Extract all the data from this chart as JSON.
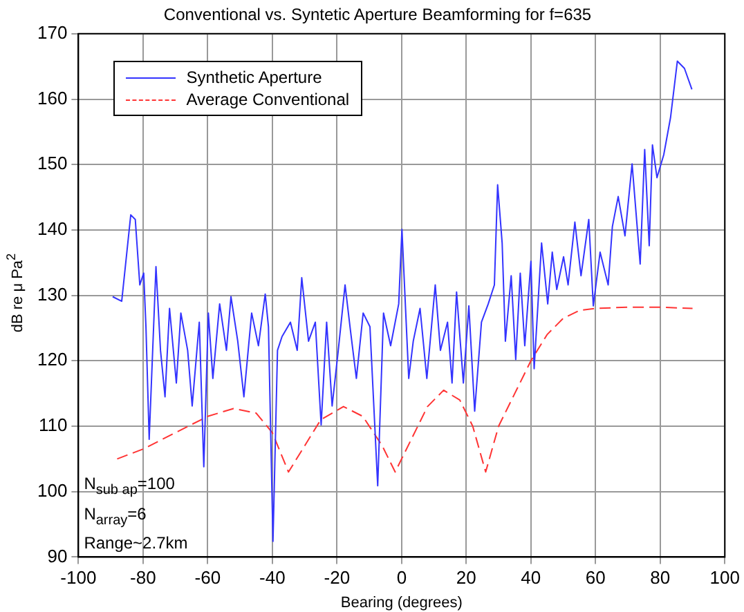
{
  "chart_data": {
    "type": "line",
    "title": "Conventional vs. Syntetic Aperture Beamforming for f=635",
    "xlabel": "Bearing (degrees)",
    "ylabel": "dB re μ Pa$^{2}$",
    "xlim": [
      -100,
      100
    ],
    "xticks": [
      -100,
      -80,
      -60,
      -40,
      -20,
      0,
      20,
      40,
      60,
      80,
      100
    ],
    "ylim": [
      90,
      170
    ],
    "yticks": [
      90,
      100,
      110,
      120,
      130,
      140,
      150,
      160,
      170
    ],
    "grid": true,
    "legend": "top left",
    "marker": "none",
    "annotations": [
      "N$_{sub ap}$=100",
      "N$_{array}$=6",
      "Range~2.7km"
    ],
    "series": [
      {
        "name": "Synthetic Aperture",
        "color": "#3333ff",
        "line_style": "solid",
        "x": [
          -89.4,
          -86.6,
          -83.8,
          -82.4,
          -81,
          -79.8,
          -79.1,
          -78.1,
          -76,
          -74.6,
          -73.2,
          -71.8,
          -69.7,
          -68.3,
          -66.2,
          -64.8,
          -62.6,
          -61.2,
          -59.8,
          -58.4,
          -56.3,
          -54.2,
          -52.8,
          -50.7,
          -48.8,
          -46.4,
          -44.3,
          -42.2,
          -41.2,
          -39.8,
          -38.4,
          -37,
          -34.4,
          -32.3,
          -30.9,
          -28.8,
          -26.7,
          -24.9,
          -23.2,
          -21.5,
          -19.6,
          -17.5,
          -15.8,
          -14,
          -11.9,
          -9.8,
          -7.4,
          -5.6,
          -3.4,
          -0.9,
          0.1,
          2.2,
          3.6,
          5.7,
          7.8,
          10.4,
          12,
          14.2,
          15.6,
          17,
          19.1,
          20.8,
          22.6,
          24.7,
          26.8,
          28.7,
          29.7,
          31.1,
          32.1,
          33.9,
          35.3,
          36.7,
          38.1,
          40,
          41,
          43.3,
          45.2,
          46.6,
          48,
          50.1,
          51.5,
          53.6,
          55.5,
          57.9,
          59.3,
          61.4,
          63.9,
          65.2,
          67,
          69.1,
          71.3,
          73.8,
          75.2,
          76.6,
          77.6,
          79,
          81.1,
          83.2,
          85.3,
          87.5,
          89.8
        ],
        "values": [
          129.8,
          129.1,
          142.3,
          141.6,
          131.6,
          133.4,
          125.2,
          108,
          134.4,
          121.6,
          114.5,
          128,
          116.6,
          127.3,
          121.6,
          113.1,
          125.9,
          103.8,
          127.3,
          117.3,
          128.7,
          121.6,
          129.8,
          123,
          114.5,
          127.3,
          122.3,
          130.2,
          125.2,
          92.4,
          121.6,
          123.7,
          125.9,
          121.6,
          132.7,
          123,
          125.9,
          110.2,
          125.9,
          113.1,
          121.6,
          131.6,
          124.5,
          117.3,
          127.3,
          125.2,
          100.9,
          127.3,
          122.3,
          128.7,
          140.1,
          117.3,
          123,
          128,
          117.3,
          131.6,
          121.6,
          125.9,
          116.6,
          130.5,
          116.6,
          128.4,
          112.3,
          125.9,
          128.7,
          131.6,
          146.9,
          138,
          123,
          133,
          120.2,
          133.4,
          122.3,
          135.2,
          118.8,
          138,
          128.7,
          136.6,
          130.9,
          135.9,
          131.6,
          141.2,
          133,
          141.6,
          128.4,
          136.6,
          131.6,
          140.5,
          145.1,
          139.1,
          150.1,
          134.8,
          152.3,
          137.6,
          153,
          148,
          151.5,
          157.2,
          165.8,
          164.7,
          161.5
        ]
      },
      {
        "name": "Average Conventional",
        "color": "#ff3333",
        "line_style": "dashed",
        "x": [
          -88,
          -80,
          -70,
          -60,
          -52,
          -45,
          -40,
          -35,
          -30,
          -25,
          -18,
          -12,
          -6,
          -2,
          3,
          8,
          13,
          18,
          22,
          26,
          30,
          35,
          40,
          45,
          50,
          55,
          60,
          70,
          80,
          90
        ],
        "values": [
          105,
          106.5,
          109,
          111.5,
          112.7,
          112,
          109,
          103,
          107,
          111,
          113,
          111.5,
          107,
          103,
          108,
          113,
          115.5,
          114,
          110,
          103,
          110,
          115,
          120,
          124,
          126.5,
          127.7,
          128,
          128.2,
          128.2,
          128
        ]
      }
    ]
  }
}
